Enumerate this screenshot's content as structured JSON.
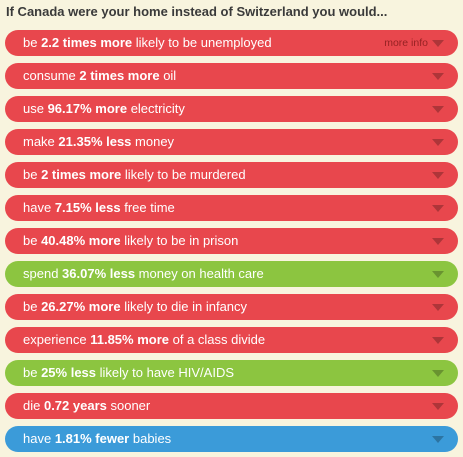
{
  "header": {
    "title": "If Canada were your home instead of Switzerland you would..."
  },
  "items": [
    {
      "before": "be ",
      "highlight": "2.2 times more",
      "after": " likely to be unemployed",
      "color": "#e8474d",
      "link": "more info"
    },
    {
      "before": "consume ",
      "highlight": "2 times more",
      "after": " oil",
      "color": "#e8474d"
    },
    {
      "before": "use ",
      "highlight": "96.17% more",
      "after": " electricity",
      "color": "#e8474d"
    },
    {
      "before": "make ",
      "highlight": "21.35% less",
      "after": " money",
      "color": "#e8474d"
    },
    {
      "before": "be ",
      "highlight": "2 times more",
      "after": " likely to be murdered",
      "color": "#e8474d"
    },
    {
      "before": "have ",
      "highlight": "7.15% less",
      "after": " free time",
      "color": "#e8474d"
    },
    {
      "before": "be ",
      "highlight": "40.48% more",
      "after": " likely to be in prison",
      "color": "#e8474d"
    },
    {
      "before": "spend ",
      "highlight": "36.07% less",
      "after": " money on health care",
      "color": "#8cc540"
    },
    {
      "before": "be ",
      "highlight": "26.27% more",
      "after": " likely to die in infancy",
      "color": "#e8474d"
    },
    {
      "before": "experience ",
      "highlight": "11.85% more",
      "after": " of a class divide",
      "color": "#e8474d"
    },
    {
      "before": "be ",
      "highlight": "25% less",
      "after": " likely to have HIV/AIDS",
      "color": "#8cc540"
    },
    {
      "before": "die ",
      "highlight": "0.72 years",
      "after": " sooner",
      "color": "#e8474d"
    },
    {
      "before": "have ",
      "highlight": "1.81% fewer",
      "after": " babies",
      "color": "#3b9bd9"
    }
  ]
}
